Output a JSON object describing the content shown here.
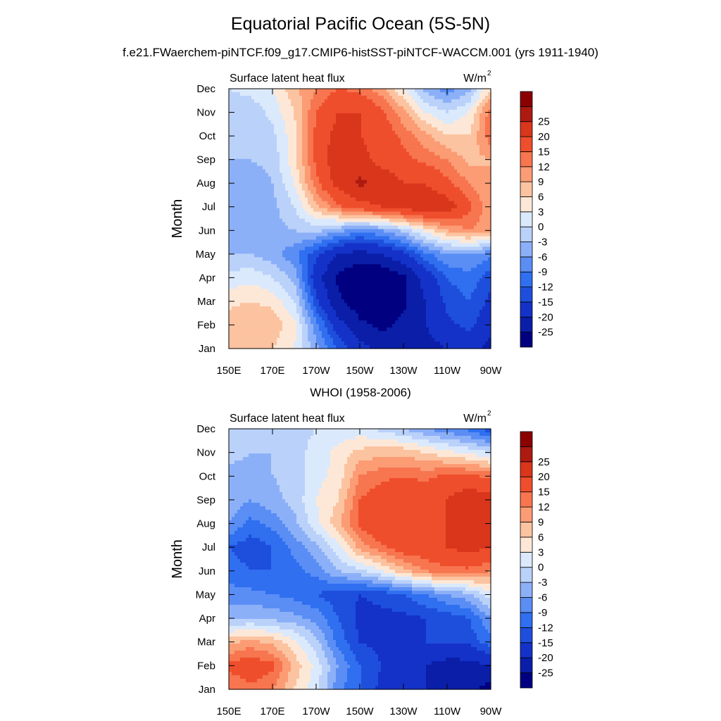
{
  "title": "Equatorial Pacific Ocean (5S-5N)",
  "subtitle": "f.e21.FWaerchem-piNTCF.f09_g17.CMIP6-histSST-piNTCF-WACCM.001 (yrs 1911-1940)",
  "panel2_title": "WHOI (1958-2006)",
  "colorbar": {
    "colors": [
      "#000080",
      "#0a1ea8",
      "#1432c8",
      "#1e4fdc",
      "#2f6ff0",
      "#5a8ef5",
      "#8cb0f8",
      "#bad1fa",
      "#dbe9fc",
      "#fde8d7",
      "#fcc3a0",
      "#fb9c74",
      "#f7754f",
      "#ef4e2c",
      "#d9361c",
      "#ad1a10",
      "#8b0000"
    ],
    "labels": [
      "-25",
      "-20",
      "-15",
      "-12",
      "-9",
      "-6",
      "-3",
      "0",
      "3",
      "6",
      "9",
      "12",
      "15",
      "20",
      "25"
    ]
  },
  "chart_data": [
    {
      "type": "heatmap",
      "left_label": "Surface latent heat flux",
      "right_label": "W/m",
      "right_label_sup": "2",
      "ylabel": "Month",
      "x_ticks": [
        "150E",
        "170E",
        "170W",
        "150W",
        "130W",
        "110W",
        "90W"
      ],
      "y_ticks": [
        "Jan",
        "Feb",
        "Mar",
        "Apr",
        "May",
        "Jun",
        "Jul",
        "Aug",
        "Sep",
        "Oct",
        "Nov",
        "Dec"
      ],
      "x_range": [
        "150E",
        "90W"
      ],
      "levels": [
        -25,
        -20,
        -15,
        -12,
        -9,
        -6,
        -3,
        0,
        3,
        6,
        9,
        12,
        15,
        20,
        25
      ],
      "z": [
        [
          6,
          7,
          6,
          3,
          -5,
          -12,
          -18,
          -22,
          -24,
          -22,
          -20,
          -18,
          -22
        ],
        [
          8,
          9,
          8,
          4,
          -8,
          -18,
          -24,
          -26,
          -24,
          -20,
          -16,
          -14,
          -18
        ],
        [
          5,
          6,
          5,
          0,
          -14,
          -24,
          -28,
          -28,
          -26,
          -20,
          -14,
          -12,
          -16
        ],
        [
          1,
          2,
          0,
          -4,
          -18,
          -26,
          -30,
          -30,
          -26,
          -18,
          -12,
          -10,
          -14
        ],
        [
          -3,
          -3,
          -5,
          -8,
          -14,
          -20,
          -22,
          -20,
          -16,
          -10,
          -6,
          -6,
          -8
        ],
        [
          -4,
          -4,
          -4,
          -3,
          -2,
          -5,
          -8,
          -6,
          -2,
          4,
          9,
          12,
          10
        ],
        [
          -6,
          -6,
          -4,
          0,
          8,
          14,
          18,
          20,
          22,
          24,
          23,
          16,
          10
        ],
        [
          -5,
          -5,
          -3,
          3,
          14,
          22,
          26,
          24,
          20,
          20,
          16,
          12,
          9
        ],
        [
          -3,
          -3,
          -2,
          5,
          16,
          24,
          22,
          18,
          16,
          14,
          12,
          8,
          9
        ],
        [
          -2,
          -2,
          -1,
          5,
          16,
          22,
          20,
          18,
          14,
          10,
          6,
          6,
          14
        ],
        [
          -2,
          -2,
          1,
          6,
          15,
          20,
          20,
          16,
          10,
          3,
          0,
          3,
          14
        ],
        [
          0,
          1,
          3,
          8,
          12,
          15,
          14,
          10,
          3,
          -4,
          -8,
          -4,
          6
        ]
      ]
    },
    {
      "type": "heatmap",
      "left_label": "Surface latent heat flux",
      "right_label": "W/m",
      "right_label_sup": "2",
      "ylabel": "Month",
      "x_ticks": [
        "150E",
        "170E",
        "170W",
        "150W",
        "130W",
        "110W",
        "90W"
      ],
      "y_ticks": [
        "Jan",
        "Feb",
        "Mar",
        "Apr",
        "May",
        "Jun",
        "Jul",
        "Aug",
        "Sep",
        "Oct",
        "Nov",
        "Dec"
      ],
      "x_range": [
        "150E",
        "90W"
      ],
      "levels": [
        -25,
        -20,
        -15,
        -12,
        -9,
        -6,
        -3,
        0,
        3,
        6,
        9,
        12,
        15,
        20,
        25
      ],
      "z": [
        [
          12,
          14,
          12,
          6,
          1,
          -8,
          -12,
          -16,
          -18,
          -20,
          -22,
          -24,
          -27
        ],
        [
          16,
          18,
          16,
          8,
          2,
          -6,
          -12,
          -15,
          -18,
          -20,
          -22,
          -22,
          -20
        ],
        [
          8,
          10,
          8,
          4,
          -2,
          -10,
          -15,
          -16,
          -16,
          -15,
          -15,
          -14,
          -10
        ],
        [
          -4,
          -3,
          -4,
          -5,
          -7,
          -12,
          -16,
          -16,
          -16,
          -15,
          -14,
          -12,
          -6
        ],
        [
          -8,
          -8,
          -9,
          -10,
          -12,
          -14,
          -15,
          -14,
          -12,
          -9,
          -6,
          -4,
          2
        ],
        [
          -10,
          -12,
          -12,
          -10,
          -8,
          -3,
          -1,
          3,
          8,
          12,
          14,
          14,
          12
        ],
        [
          -12,
          -14,
          -12,
          -8,
          -4,
          2,
          10,
          14,
          18,
          18,
          20,
          22,
          20
        ],
        [
          -6,
          -10,
          -8,
          -4,
          2,
          8,
          16,
          20,
          20,
          18,
          20,
          22,
          20
        ],
        [
          -4,
          -6,
          -4,
          -2,
          3,
          6,
          15,
          18,
          20,
          18,
          20,
          24,
          22
        ],
        [
          -4,
          -4,
          -3,
          -2,
          2,
          4,
          12,
          14,
          15,
          14,
          16,
          16,
          14
        ],
        [
          -2,
          -3,
          -3,
          -1,
          1,
          4,
          7,
          8,
          8,
          6,
          4,
          2,
          0
        ],
        [
          -2,
          -2,
          -2,
          -1,
          0,
          1,
          1,
          -1,
          -3,
          -6,
          -8,
          -10,
          -14
        ]
      ]
    }
  ]
}
